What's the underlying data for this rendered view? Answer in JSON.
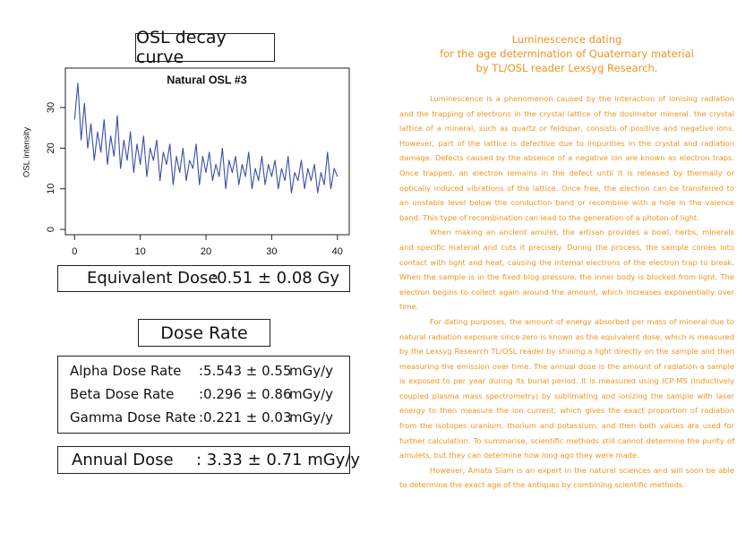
{
  "header": {
    "title": "OSL decay curve"
  },
  "chart_data": {
    "type": "line",
    "title": "Natural OSL #3",
    "y_label": "OSL intensity",
    "color": "#3a4ea6",
    "x": [
      0,
      0.5,
      1,
      1.5,
      2,
      2.5,
      3,
      3.5,
      4,
      4.5,
      5,
      5.5,
      6,
      6.5,
      7,
      7.5,
      8,
      8.5,
      9,
      9.5,
      10,
      10.5,
      11,
      11.5,
      12,
      12.5,
      13,
      13.5,
      14,
      14.5,
      15,
      15.5,
      16,
      16.5,
      17,
      17.5,
      18,
      18.5,
      19,
      19.5,
      20,
      20.5,
      21,
      21.5,
      22,
      22.5,
      23,
      23.5,
      24,
      24.5,
      25,
      25.5,
      26,
      26.5,
      27,
      27.5,
      28,
      28.5,
      29,
      29.5,
      30,
      30.5,
      31,
      31.5,
      32,
      32.5,
      33,
      33.5,
      34,
      34.5,
      35,
      35.5,
      36,
      36.5,
      37,
      37.5,
      38,
      38.5,
      39,
      39.5,
      40
    ],
    "values": [
      27,
      36,
      22,
      31,
      20,
      26,
      17,
      24,
      19,
      27,
      16,
      23,
      18,
      28,
      15,
      22,
      17,
      24,
      14,
      21,
      16,
      23,
      13,
      20,
      17,
      22,
      12,
      19,
      16,
      21,
      11,
      18,
      14,
      20,
      12,
      17,
      15,
      21,
      11,
      18,
      14,
      19,
      12,
      16,
      13,
      20,
      10,
      17,
      14,
      18,
      11,
      16,
      13,
      19,
      10,
      15,
      12,
      18,
      11,
      16,
      13,
      17,
      10,
      15,
      12,
      18,
      9,
      14,
      12,
      17,
      10,
      15,
      12,
      16,
      9,
      14,
      11,
      19,
      10,
      15,
      13
    ],
    "xlim": [
      -1.4,
      41.8
    ],
    "ylim": [
      -1.3,
      39.7
    ],
    "xticks": [
      0,
      10,
      20,
      30,
      40
    ],
    "yticks": [
      0,
      10,
      20,
      30
    ]
  },
  "equivalent_dose": {
    "label": "Equivalent Dose",
    "value": ":0.51 ± 0.08 Gy"
  },
  "dose_rate": {
    "title": "Dose Rate",
    "rows": [
      [
        "Alpha Dose Rate",
        ":5.543 ± 0.55",
        "mGy/y"
      ],
      [
        "Beta Dose Rate",
        ":0.296 ± 0.86",
        "mGy/y"
      ],
      [
        "Gamma Dose Rate",
        ":0.221 ± 0.03",
        "mGy/y"
      ]
    ]
  },
  "annual_dose": {
    "label": "Annual Dose",
    "value": ": 3.33 ± 0.71 mGy/y"
  },
  "article": {
    "title": [
      "Luminescence dating",
      "for the age determination of Quaternary material",
      "by TL/OSL reader Lexsyg Research."
    ],
    "paragraphs": [
      "Luminescence is a phenomenon caused by the interaction of ionising radiation and the trapping of electrons in the crystal lattice of the dosimeter mineral. the crystal lattice of a mineral, such as quartz or feldspar, consists of positive and negative ions. However, part of the lattice is defective due to impurities in the crystal and radiation damage. Defects caused by the absence of a negative ion are known as electron traps. Once trapped, an electron remains in the defect until it is released by thermally or optically induced vibrations of the lattice. Once free, the electron can be transferred to an unstable level below the conduction band or recombine with a hole in the valence band. This type of recombination can lead to the generation of a photon of light.",
      "When making an ancient amulet, the artisan provides a bowl, herbs, minerals and specific material and cuts it precisely. During the process, the sample comes into contact with light and heat, causing the internal electrons of the electron trap to break. When the sample is in the fixed blog pressure, the inner body is blocked from light. The electron begins to collect again around the amount, which increases exponentially over time.",
      "For dating purposes, the amount of energy absorbed per mass of mineral due to natural radiation exposure since zero is known as the equivalent dose, which is measured by the Lexsyg Research TL/OSL reader by shining a light directly on the sample and then measuring the emission over time. The annual dose is the amount of radiation a sample is exposed to per year during its burial period. It is measured using ICP-MS (inductively coupled plasma mass spectrometry) by sublimating and ionizing the sample with laser energy to then measure the ion current, which gives the exact proportion of radiation from the isotopes uranium, thorium and potassium, and then both values are used for further calculation. To summarise, scientific methods still cannot determine the purity of amulets, but they can determine how long ago they were made.",
      "However, Amata Siam is an expert in the natural sciences and will soon be able to determine the exact age of the antiques by combining scientific methods."
    ]
  }
}
